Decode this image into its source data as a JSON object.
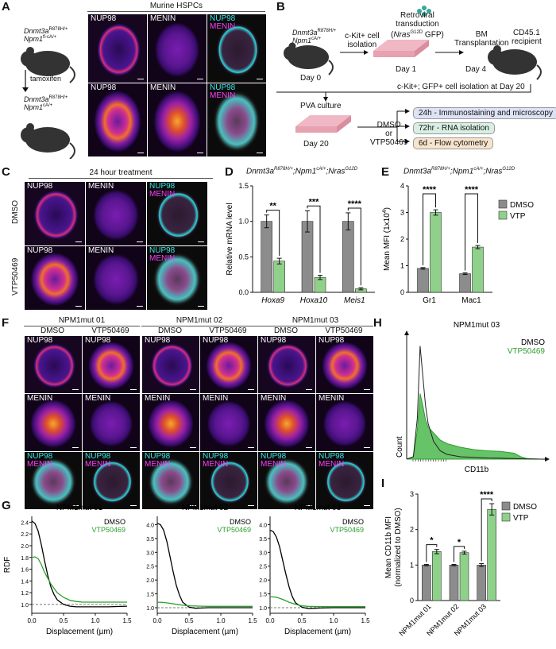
{
  "panels": {
    "A": "A",
    "B": "B",
    "C": "C",
    "D": "D",
    "E": "E",
    "F": "F",
    "G": "G",
    "H": "H",
    "I": "I"
  },
  "panel_a": {
    "header": "Murine HSPCs",
    "mouse1": "Dnmt3aR878H/+ Npm1fl-cA/+",
    "mouse1_l1": "Dnmt3a",
    "mouse1_s1": "R878H/+",
    "mouse1_l2": "Npm1",
    "mouse1_s2": "fl-cA/+",
    "arrow_label": "tamoxifen",
    "mouse2_l1": "Dnmt3a",
    "mouse2_s1": "R878H/+",
    "mouse2_l2": "Npm1",
    "mouse2_s2": "cA/+",
    "ch_nup": "NUP98",
    "ch_men": "MENIN"
  },
  "panel_b": {
    "mouse_l1": "Dnmt3a",
    "mouse_s1": "R878H/+",
    "mouse_l2": "Npm1",
    "mouse_s2": "cA/+",
    "day0": "Day 0",
    "step1": "c-Kit+ cell",
    "step1b": "isolation",
    "retro1": "Retroviral",
    "retro2": "transduction",
    "retro3a": "(",
    "retro3b": "Nras",
    "retro3c": "G12D",
    "retro3d": " GFP)",
    "day1": "Day 1",
    "bm1": "BM",
    "bm2": "Transplantation",
    "day4": "Day 4",
    "rec1": "CD45.1",
    "rec2": "recipient",
    "iso": "c-Kit+; GFP+ cell isolation at Day 20",
    "pva": "PVA culture",
    "day20": "Day 20",
    "dmso": "DMSO",
    "or": "or",
    "vtp": "VTP50469",
    "box1": "24h - Immunostaining and microscopy",
    "box2": "72hr - RNA isolation",
    "box3": "6d - Flow cytometry",
    "box_colors": [
      "#dde3f5",
      "#d8f0e3",
      "#f8e4cc"
    ]
  },
  "panel_c": {
    "header": "24 hour treatment",
    "rows": [
      "DMSO",
      "VTP50469"
    ],
    "ch_nup": "NUP98",
    "ch_men": "MENIN"
  },
  "panel_d": {
    "title_parts": [
      "Dnmt3a",
      "R878H/+",
      ";Npm1",
      "cA/+",
      ";Nras",
      "G12D"
    ],
    "chart_data": {
      "type": "bar",
      "categories": [
        "Hoxa9",
        "Hoxa10",
        "Meis1"
      ],
      "series": [
        {
          "name": "DMSO",
          "values": [
            1.0,
            1.0,
            1.0
          ],
          "errors": [
            0.09,
            0.15,
            0.12
          ],
          "color": "#8c8c8c"
        },
        {
          "name": "VTP",
          "values": [
            0.44,
            0.21,
            0.05
          ],
          "errors": [
            0.04,
            0.03,
            0.015
          ],
          "color": "#8fd18a"
        }
      ],
      "ylabel": "Relative mRNA level",
      "ylim": [
        0,
        1.5
      ],
      "yticks": [
        "0.0",
        "0.5",
        "1.0",
        "1.5"
      ],
      "significance": [
        "**",
        "***",
        "****"
      ]
    }
  },
  "panel_e": {
    "title_parts": [
      "Dnmt3a",
      "R878H/+",
      ";Npm1",
      "cA/+",
      ";Nras",
      "G12D"
    ],
    "chart_data": {
      "type": "bar",
      "categories": [
        "Gr1",
        "Mac1"
      ],
      "series": [
        {
          "name": "DMSO",
          "values": [
            0.9,
            0.7
          ],
          "errors": [
            0.03,
            0.03
          ],
          "color": "#8c8c8c"
        },
        {
          "name": "VTP",
          "values": [
            3.0,
            1.7
          ],
          "errors": [
            0.1,
            0.06
          ],
          "color": "#8fd18a"
        }
      ],
      "ylabel_a": "Mean MFI (1x10",
      "ylabel_sup": "4",
      "ylabel_b": ")",
      "ylim": [
        0,
        4
      ],
      "yticks": [
        "0",
        "1",
        "2",
        "3",
        "4"
      ],
      "significance": [
        "****",
        "****"
      ],
      "legend": [
        "DMSO",
        "VTP"
      ]
    }
  },
  "panel_f": {
    "groups": [
      "NPM1mut 01",
      "NPM1mut 02",
      "NPM1mut 03"
    ],
    "conds": [
      "DMSO",
      "VTP50469"
    ],
    "ch_nup": "NUP98",
    "ch_men": "MENIN"
  },
  "panel_g": {
    "chart_data": [
      {
        "type": "line",
        "title": "NPM1mut 01",
        "xlabel": "Displacement (µm)",
        "ylabel": "RDF",
        "xlim": [
          0,
          1.5
        ],
        "ylim": [
          0.85,
          2.5
        ],
        "xticks": [
          "0.0",
          "0.5",
          "1.0",
          "1.5"
        ],
        "yticks": [
          "1.0",
          "1.2",
          "1.4",
          "1.6",
          "1.8",
          "2.0",
          "2.2",
          "2.4"
        ],
        "legend": [
          "DMSO",
          "VTP50469"
        ],
        "series": [
          {
            "name": "DMSO",
            "color": "#000000",
            "x": [
              0,
              0.05,
              0.1,
              0.15,
              0.2,
              0.25,
              0.3,
              0.35,
              0.4,
              0.5,
              0.6,
              0.7,
              0.8,
              0.9,
              1.0,
              1.2,
              1.5
            ],
            "y": [
              2.42,
              2.38,
              2.25,
              2.02,
              1.75,
              1.5,
              1.3,
              1.17,
              1.08,
              1.0,
              0.97,
              0.96,
              0.96,
              0.96,
              0.96,
              0.96,
              0.97
            ]
          },
          {
            "name": "VTP50469",
            "color": "#2ca02c",
            "x": [
              0,
              0.05,
              0.1,
              0.15,
              0.2,
              0.3,
              0.4,
              0.5,
              0.6,
              0.7,
              0.8,
              1.0,
              1.2,
              1.5
            ],
            "y": [
              1.8,
              1.81,
              1.78,
              1.68,
              1.55,
              1.35,
              1.2,
              1.12,
              1.07,
              1.05,
              1.04,
              1.04,
              1.04,
              1.04
            ]
          }
        ]
      },
      {
        "type": "line",
        "title": "NPM1mut 02",
        "xlabel": "Displacement (µm)",
        "xlim": [
          0,
          1.5
        ],
        "ylim": [
          0.8,
          4.3
        ],
        "xticks": [
          "0.0",
          "0.5",
          "1.0",
          "1.5"
        ],
        "yticks": [
          "1.0",
          "1.5",
          "2.0",
          "2.5",
          "3.0",
          "3.5",
          "4.0"
        ],
        "legend": [
          "DMSO",
          "VTP50469"
        ],
        "series": [
          {
            "name": "DMSO",
            "color": "#000000",
            "x": [
              0,
              0.05,
              0.1,
              0.15,
              0.2,
              0.25,
              0.3,
              0.35,
              0.4,
              0.5,
              0.6,
              0.7,
              0.8,
              1.0,
              1.2,
              1.5
            ],
            "y": [
              4.05,
              4.0,
              3.8,
              3.4,
              2.85,
              2.3,
              1.8,
              1.45,
              1.2,
              1.02,
              0.98,
              0.99,
              1.0,
              1.0,
              1.0,
              1.0
            ]
          },
          {
            "name": "VTP50469",
            "color": "#2ca02c",
            "x": [
              0,
              0.1,
              0.2,
              0.3,
              0.4,
              0.5,
              0.6,
              0.8,
              1.0,
              1.2,
              1.5
            ],
            "y": [
              1.2,
              1.19,
              1.16,
              1.12,
              1.09,
              1.07,
              1.06,
              1.05,
              1.05,
              1.05,
              1.05
            ]
          }
        ]
      },
      {
        "type": "line",
        "title": "NPM1mut 03",
        "xlabel": "Displacement (µm)",
        "xlim": [
          0,
          1.5
        ],
        "ylim": [
          0.8,
          4.3
        ],
        "xticks": [
          "0.0",
          "0.5",
          "1.0",
          "1.5"
        ],
        "yticks": [
          "1.0",
          "1.5",
          "2.0",
          "2.5",
          "3.0",
          "3.5",
          "4.0"
        ],
        "legend": [
          "DMSO",
          "VTP50469"
        ],
        "series": [
          {
            "name": "DMSO",
            "color": "#000000",
            "x": [
              0,
              0.05,
              0.1,
              0.15,
              0.2,
              0.25,
              0.3,
              0.35,
              0.4,
              0.5,
              0.6,
              0.7,
              0.8,
              1.0,
              1.2,
              1.5
            ],
            "y": [
              3.8,
              3.75,
              3.55,
              3.2,
              2.7,
              2.2,
              1.75,
              1.4,
              1.18,
              1.02,
              0.97,
              0.98,
              0.99,
              1.0,
              1.0,
              1.0
            ]
          },
          {
            "name": "VTP50469",
            "color": "#2ca02c",
            "x": [
              0,
              0.1,
              0.2,
              0.3,
              0.4,
              0.5,
              0.6,
              0.8,
              1.0,
              1.2,
              1.5
            ],
            "y": [
              1.4,
              1.38,
              1.3,
              1.2,
              1.12,
              1.07,
              1.05,
              1.04,
              1.04,
              1.04,
              1.04
            ]
          }
        ]
      }
    ]
  },
  "panel_h": {
    "chart_data": {
      "type": "area",
      "title": "NPM1mut 03",
      "xlabel": "CD11b",
      "ylabel": "Count",
      "legend": [
        "DMSO",
        "VTP50469"
      ],
      "series": [
        {
          "name": "DMSO",
          "color": "#222222",
          "fill": "none",
          "x": [
            0,
            0.05,
            0.08,
            0.1,
            0.12,
            0.14,
            0.16,
            0.2,
            0.25,
            0.3,
            0.4,
            0.5,
            0.6,
            0.7,
            0.8,
            0.9,
            1.0
          ],
          "y": [
            0,
            0.02,
            0.35,
            0.95,
            0.7,
            0.45,
            0.3,
            0.15,
            0.07,
            0.04,
            0.02,
            0.015,
            0.01,
            0.008,
            0.005,
            0.002,
            0
          ]
        },
        {
          "name": "VTP50469",
          "color": "#2e9e2e",
          "fill": "#4cb84c",
          "x": [
            0,
            0.05,
            0.08,
            0.1,
            0.12,
            0.14,
            0.16,
            0.2,
            0.25,
            0.3,
            0.4,
            0.5,
            0.6,
            0.7,
            0.8,
            0.85,
            0.9,
            1.0
          ],
          "y": [
            0,
            0.02,
            0.25,
            0.55,
            0.45,
            0.33,
            0.27,
            0.22,
            0.16,
            0.13,
            0.1,
            0.08,
            0.07,
            0.065,
            0.05,
            0.02,
            0.005,
            0
          ]
        }
      ]
    }
  },
  "panel_i": {
    "chart_data": {
      "type": "bar",
      "categories": [
        "NPM1mut 01",
        "NPM1mut 02",
        "NPM1mut 03"
      ],
      "series": [
        {
          "name": "DMSO",
          "values": [
            1.0,
            1.0,
            1.0
          ],
          "errors": [
            0.02,
            0.02,
            0.04
          ],
          "color": "#8c8c8c"
        },
        {
          "name": "VTP",
          "values": [
            1.38,
            1.35,
            2.57
          ],
          "errors": [
            0.06,
            0.04,
            0.16
          ],
          "color": "#8fd18a"
        }
      ],
      "ylabel1": "Mean CD11b MFI",
      "ylabel2": "(normalized to DMSO)",
      "ylim": [
        0,
        3
      ],
      "yticks": [
        "0",
        "1",
        "2",
        "3"
      ],
      "significance": [
        "*",
        "*",
        "****"
      ],
      "legend": [
        "DMSO",
        "VTP"
      ]
    }
  }
}
